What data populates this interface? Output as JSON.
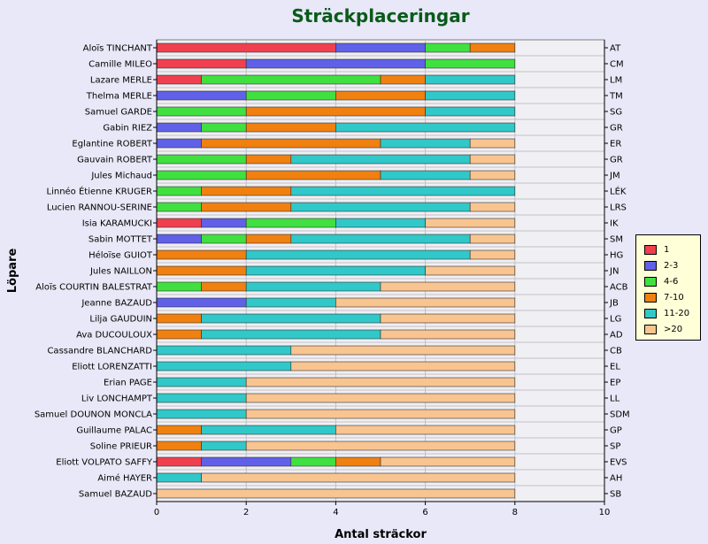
{
  "chart_data": {
    "type": "bar",
    "orientation": "horizontal",
    "stacked": true,
    "title": "Sträckplaceringar",
    "xlabel": "Antal sträckor",
    "ylabel": "Löpare",
    "xlim": [
      0,
      10
    ],
    "xticks": [
      "0",
      "2",
      "4",
      "6",
      "8",
      "10"
    ],
    "grid": true,
    "legend_position": "right",
    "categories": [
      "Aloïs TINCHANT",
      "Camille MILEO",
      "Lazare MERLE",
      "Thelma MERLE",
      "Samuel GARDE",
      "Gabin RIEZ",
      "Eglantine ROBERT",
      "Gauvain ROBERT",
      "Jules Michaud",
      "Linnéo Étienne KRUGER",
      "Lucien RANNOU-SERINE",
      "Isia KARAMUCKI",
      "Sabin MOTTET",
      "Héloïse GUIOT",
      "Jules NAILLON",
      "Aloïs COURTIN BALESTRAT",
      "Jeanne BAZAUD",
      "Lilja GAUDUIN",
      "Ava DUCOULOUX",
      "Cassandre BLANCHARD",
      "Eliott LORENZATTI",
      "Erian PAGE",
      "Liv LONCHAMPT",
      "Samuel DOUNON MONCLA",
      "Guillaume PALAC",
      "Soline PRIEUR",
      "Eliott VOLPATO SAFFY",
      "Aimé HAYER",
      "Samuel BAZAUD"
    ],
    "right_labels": [
      "AT",
      "CM",
      "LM",
      "TM",
      "SG",
      "GR",
      "ER",
      "GR",
      "JM",
      "LÉK",
      "LRS",
      "IK",
      "SM",
      "HG",
      "JN",
      "ACB",
      "JB",
      "LG",
      "AD",
      "CB",
      "EL",
      "EP",
      "LL",
      "SDM",
      "GP",
      "SP",
      "EVS",
      "AH",
      "SB"
    ],
    "series": [
      {
        "name": "1",
        "color": "#f04050",
        "values": [
          4,
          2,
          1,
          0,
          0,
          0,
          0,
          0,
          0,
          0,
          0,
          1,
          0,
          0,
          0,
          0,
          0,
          0,
          0,
          0,
          0,
          0,
          0,
          0,
          0,
          0,
          1,
          0,
          0
        ]
      },
      {
        "name": "2-3",
        "color": "#6060e8",
        "values": [
          2,
          4,
          0,
          2,
          0,
          1,
          1,
          0,
          0,
          0,
          0,
          1,
          1,
          0,
          0,
          0,
          2,
          0,
          0,
          0,
          0,
          0,
          0,
          0,
          0,
          0,
          2,
          0,
          0
        ]
      },
      {
        "name": "4-6",
        "color": "#40e040",
        "values": [
          1,
          2,
          4,
          2,
          2,
          1,
          0,
          2,
          2,
          1,
          1,
          2,
          1,
          0,
          0,
          1,
          0,
          0,
          0,
          0,
          0,
          0,
          0,
          0,
          0,
          0,
          1,
          0,
          0
        ]
      },
      {
        "name": "7-10",
        "color": "#f08010",
        "values": [
          1,
          0,
          1,
          2,
          4,
          2,
          4,
          1,
          3,
          2,
          2,
          0,
          1,
          2,
          2,
          1,
          0,
          1,
          1,
          0,
          0,
          0,
          0,
          0,
          1,
          1,
          1,
          0,
          0
        ]
      },
      {
        "name": "11-20",
        "color": "#30c8c8",
        "values": [
          0,
          0,
          2,
          2,
          2,
          4,
          2,
          4,
          2,
          5,
          4,
          2,
          4,
          5,
          4,
          3,
          2,
          4,
          4,
          3,
          3,
          2,
          2,
          2,
          3,
          1,
          0,
          1,
          0
        ]
      },
      {
        "name": ">20",
        "color": "#f8c490",
        "values": [
          0,
          0,
          0,
          0,
          0,
          0,
          1,
          1,
          1,
          0,
          1,
          2,
          1,
          1,
          2,
          3,
          4,
          3,
          3,
          5,
          5,
          6,
          6,
          6,
          4,
          6,
          3,
          7,
          8
        ]
      }
    ]
  }
}
